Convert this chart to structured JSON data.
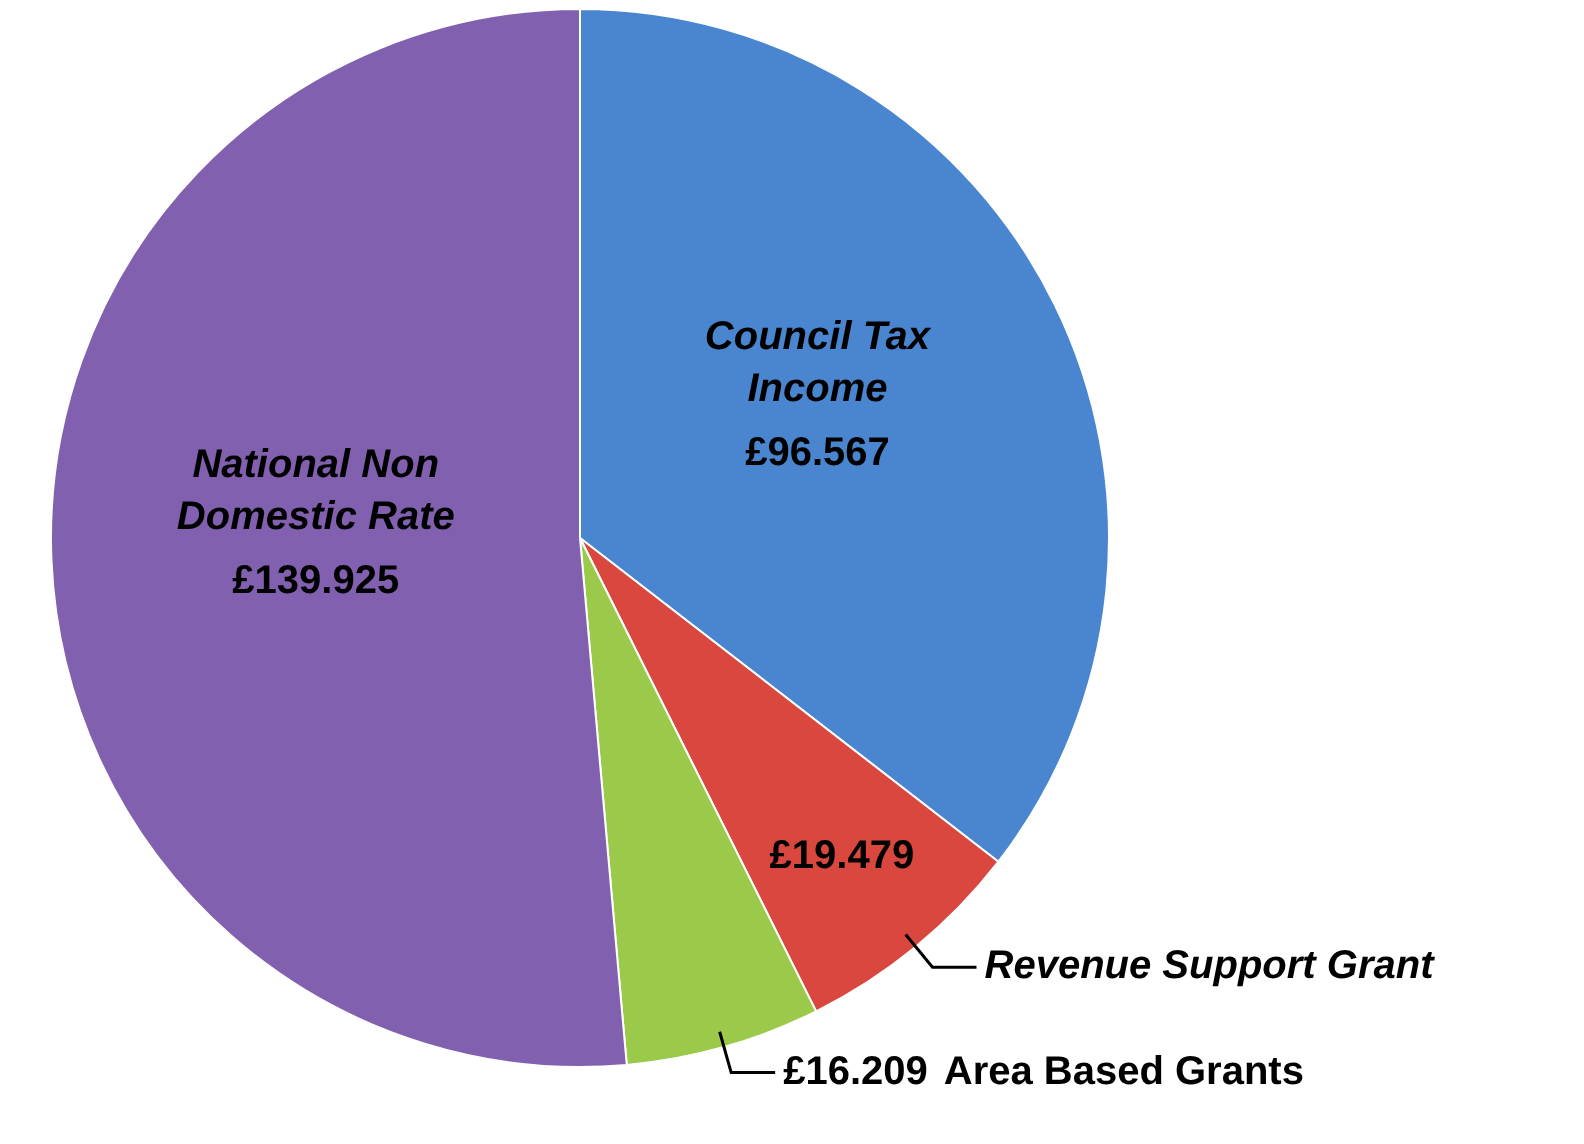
{
  "chart_data": {
    "type": "pie",
    "categories": [
      "Council Tax Income",
      "Revenue Support Grant",
      "Area Based Grants",
      "National Non Domestic Rate"
    ],
    "values": [
      96.567,
      19.479,
      16.209,
      139.925
    ],
    "value_labels": [
      "£96.567",
      "£19.479",
      "£16.209",
      "£139.925"
    ],
    "colors": [
      "#4a86d0",
      "#d9473e",
      "#9bc94a",
      "#8160b0"
    ],
    "legend": false
  }
}
